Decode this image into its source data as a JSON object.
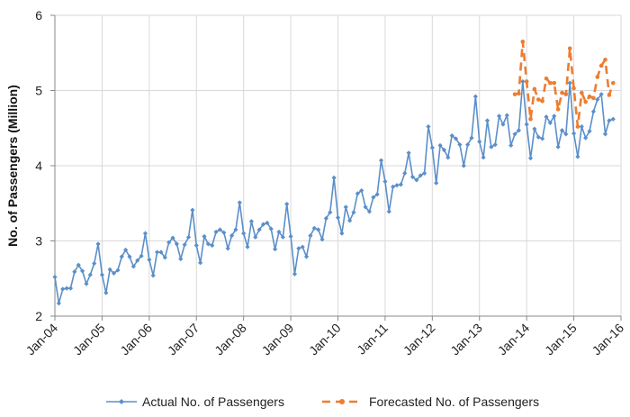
{
  "chart_data": {
    "type": "line",
    "title": "",
    "xlabel": "",
    "ylabel": "No. of Passengers (Million)",
    "ylim": [
      2,
      6
    ],
    "yticks": [
      2,
      3,
      4,
      5,
      6
    ],
    "grid": true,
    "legend_position": "bottom",
    "x_start": "2004-01",
    "x_ticks": [
      "Jan-04",
      "Jan-05",
      "Jan-06",
      "Jan-07",
      "Jan-08",
      "Jan-09",
      "Jan-10",
      "Jan-11",
      "Jan-12",
      "Jan-13",
      "Jan-14",
      "Jan-15",
      "Jan-16"
    ],
    "colors": {
      "actual": "#5b8fc9",
      "forecast": "#ed7d31",
      "grid": "#d9d9d9",
      "axis": "#888888"
    },
    "series": [
      {
        "name": "Actual No. of Passengers",
        "style": "line-diamond",
        "start_month_index": 0,
        "values": [
          2.52,
          2.17,
          2.36,
          2.37,
          2.37,
          2.59,
          2.68,
          2.6,
          2.43,
          2.55,
          2.7,
          2.96,
          2.55,
          2.31,
          2.62,
          2.57,
          2.61,
          2.79,
          2.88,
          2.79,
          2.66,
          2.74,
          2.8,
          3.1,
          2.75,
          2.54,
          2.85,
          2.85,
          2.78,
          2.98,
          3.04,
          2.96,
          2.76,
          2.95,
          3.05,
          3.41,
          2.94,
          2.71,
          3.06,
          2.96,
          2.94,
          3.12,
          3.15,
          3.11,
          2.9,
          3.07,
          3.15,
          3.51,
          3.1,
          2.92,
          3.26,
          3.05,
          3.15,
          3.22,
          3.24,
          3.16,
          2.89,
          3.12,
          3.05,
          3.49,
          3.06,
          2.56,
          2.9,
          2.92,
          2.79,
          3.07,
          3.17,
          3.15,
          3.02,
          3.3,
          3.38,
          3.84,
          3.31,
          3.1,
          3.45,
          3.27,
          3.38,
          3.63,
          3.67,
          3.45,
          3.39,
          3.58,
          3.62,
          4.07,
          3.79,
          3.39,
          3.72,
          3.74,
          3.75,
          3.9,
          4.17,
          3.85,
          3.81,
          3.87,
          3.9,
          4.52,
          4.24,
          3.77,
          4.27,
          4.21,
          4.11,
          4.4,
          4.36,
          4.28,
          4.0,
          4.28,
          4.37,
          4.92,
          4.32,
          4.11,
          4.6,
          4.25,
          4.28,
          4.66,
          4.55,
          4.67,
          4.27,
          4.42,
          4.47,
          5.12,
          4.55,
          4.1,
          4.49,
          4.38,
          4.36,
          4.65,
          4.57,
          4.66,
          4.25,
          4.47,
          4.42,
          5.1,
          4.43,
          4.12,
          4.52,
          4.37,
          4.46,
          4.72,
          4.88,
          4.95,
          4.42,
          4.6,
          4.62
        ]
      },
      {
        "name": "Forecasted No. of Passengers",
        "style": "dashed-circle",
        "start_month_index": 117,
        "values": [
          4.95,
          4.96,
          5.65,
          5.12,
          4.62,
          5.02,
          4.88,
          4.86,
          5.16,
          5.1,
          5.1,
          4.75,
          4.97,
          4.95,
          5.56,
          5.03,
          4.52,
          4.97,
          4.85,
          4.92,
          4.9,
          5.18,
          5.33,
          5.41,
          4.94,
          5.1
        ]
      }
    ]
  }
}
